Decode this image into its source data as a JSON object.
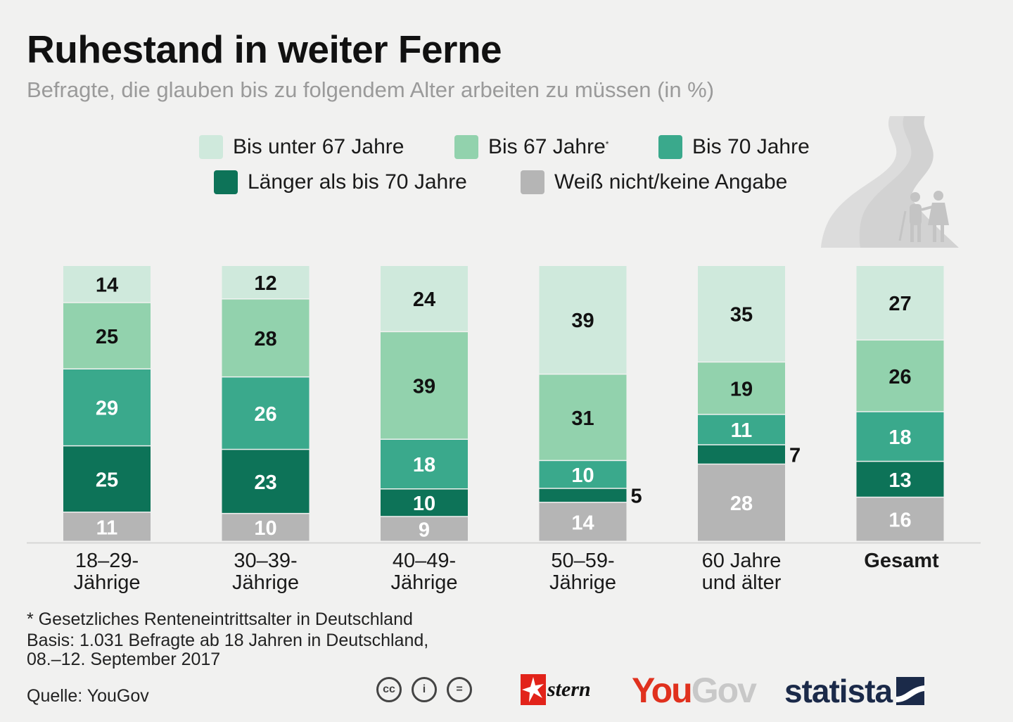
{
  "title": "Ruhestand in weiter Ferne",
  "subtitle": "Befragte, die glauben bis zu folgendem Alter arbeiten zu müssen (in %)",
  "legend": [
    {
      "label": "Bis unter 67 Jahre",
      "sup": "",
      "color": "#cfe9dc"
    },
    {
      "label": "Bis 67 Jahre",
      "sup": "*",
      "color": "#92d2ad"
    },
    {
      "label": "Bis 70 Jahre",
      "sup": "",
      "color": "#3aa98c"
    },
    {
      "label": "Länger als bis 70 Jahre",
      "sup": "",
      "color": "#0d7358"
    },
    {
      "label": "Weiß nicht/keine Angabe",
      "sup": "",
      "color": "#b5b5b5"
    }
  ],
  "chart_data": {
    "type": "bar",
    "stacked": true,
    "categories": [
      "18–29-\nJährige",
      "30–39-\nJährige",
      "40–49-\nJährige",
      "50–59-\nJährige",
      "60 Jahre\nund älter",
      "Gesamt"
    ],
    "series": [
      {
        "name": "Bis unter 67 Jahre",
        "color": "#cfe9dc",
        "label_color": "#111111",
        "values": [
          14,
          12,
          24,
          39,
          35,
          27
        ]
      },
      {
        "name": "Bis 67 Jahre",
        "color": "#92d2ad",
        "label_color": "#111111",
        "values": [
          25,
          28,
          39,
          31,
          19,
          26
        ]
      },
      {
        "name": "Bis 70 Jahre",
        "color": "#3aa98c",
        "label_color": "#ffffff",
        "values": [
          29,
          26,
          18,
          10,
          11,
          18
        ]
      },
      {
        "name": "Länger als bis 70 Jahre",
        "color": "#0d7358",
        "label_color": "#ffffff",
        "values": [
          25,
          23,
          10,
          5,
          7,
          13
        ]
      },
      {
        "name": "Weiß nicht/keine Angabe",
        "color": "#b5b5b5",
        "label_color": "#ffffff",
        "values": [
          11,
          10,
          9,
          14,
          28,
          16
        ]
      }
    ],
    "ylim": [
      0,
      100
    ],
    "outside_labels": [
      {
        "category": 3,
        "series": 3,
        "text": "5"
      },
      {
        "category": 4,
        "series": 3,
        "text": "7"
      }
    ],
    "bold_categories": [
      5
    ]
  },
  "footnote": {
    "line1": "* Gesetzliches Renteneintrittsalter in Deutschland",
    "line2": "Basis: 1.031 Befragte ab 18 Jahren in Deutschland,",
    "line3": "08.–12. September 2017"
  },
  "source": "Quelle: YouGov",
  "logos": {
    "cc": [
      "cc",
      "i",
      "="
    ],
    "stern": "stern",
    "yougov_you": "You",
    "yougov_gov": "Gov",
    "statista": "statista"
  }
}
